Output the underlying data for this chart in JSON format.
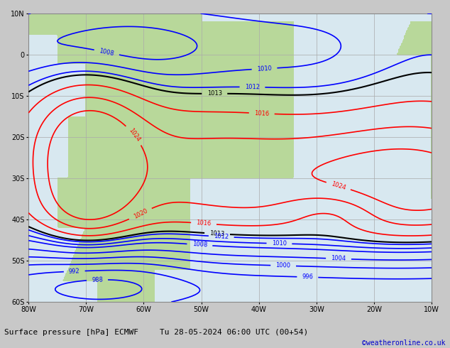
{
  "title": "Surface pressure [hPa] ECMWF",
  "datetime_str": "Tu 28-05-2024 06:00 UTC (00+54)",
  "credit": "©weatheronline.co.uk",
  "figsize": [
    6.34,
    4.9
  ],
  "dpi": 100,
  "background_color": "#d8e8d8",
  "ocean_color": "#d8e8f0",
  "land_color": "#b8d89a",
  "grid_color": "#aaaaaa",
  "border_color": "#888888",
  "contour_black_values": [
    1013
  ],
  "contour_red_values": [
    1016,
    1020,
    1024
  ],
  "contour_blue_values": [
    988,
    992,
    996,
    1000,
    1004,
    1008,
    1010,
    1012
  ],
  "lon_min": -80,
  "lon_max": -10,
  "lat_min": -60,
  "lat_max": 10,
  "xlabel_color": "#000000",
  "title_color": "#000000",
  "credit_color": "#0000cc",
  "bottom_bar_color": "#c8c8c8",
  "axis_label_size": 7,
  "title_size": 8,
  "credit_size": 7,
  "contour_linewidth_black": 1.5,
  "contour_linewidth_colored": 1.2,
  "label_fontsize": 6
}
